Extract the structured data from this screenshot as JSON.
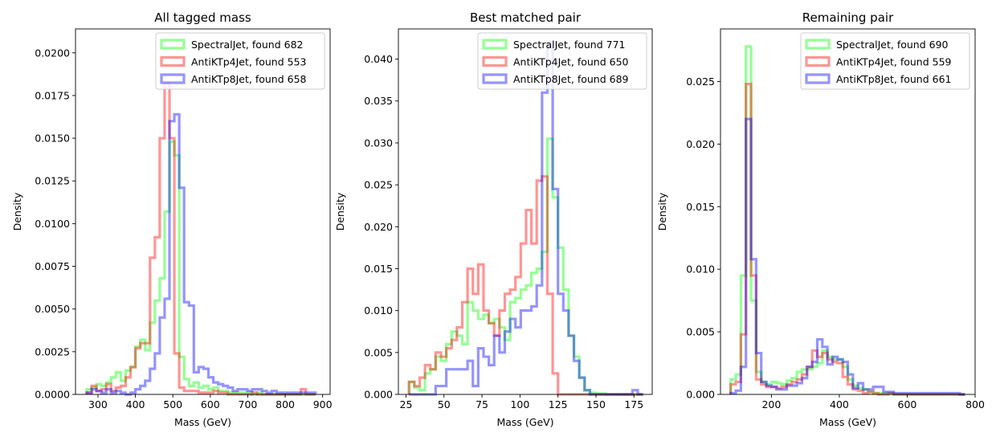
{
  "colors": {
    "SpectralJet": "#00ff00",
    "AntiKTp4Jet": "#ff0000",
    "AntiKTp8Jet": "#0000ff"
  },
  "chart_data": [
    {
      "type": "histogram",
      "title": "All tagged mass",
      "xlabel": "Mass (GeV)",
      "ylabel": "Density",
      "xlim": [
        240,
        920
      ],
      "ylim": [
        0,
        0.0214
      ],
      "xticks": [
        300,
        400,
        500,
        600,
        700,
        800,
        900
      ],
      "yticks": [
        0.0,
        0.0025,
        0.005,
        0.0075,
        0.01,
        0.0125,
        0.015,
        0.0175,
        0.02
      ],
      "ytick_labels": [
        "0.0000",
        "0.0025",
        "0.0050",
        "0.0075",
        "0.0100",
        "0.0125",
        "0.0150",
        "0.0175",
        "0.0200"
      ],
      "legend_position": "top-right",
      "series": [
        {
          "name": "SpectralJet, found 682",
          "color": "#00ff00",
          "edges": [
            270,
            283,
            296,
            309,
            322,
            335,
            348,
            361,
            374,
            387,
            400,
            413,
            426,
            439,
            452,
            465,
            478,
            491,
            504,
            517,
            530,
            543,
            556,
            569,
            582,
            595,
            608,
            621,
            634,
            647,
            660,
            673,
            686,
            699,
            712,
            725,
            738,
            751,
            764,
            777,
            790,
            803,
            816,
            829,
            842,
            855,
            868,
            881
          ],
          "values": [
            0.0003,
            0.0004,
            0.0006,
            0.0005,
            0.0007,
            0.001,
            0.0013,
            0.0008,
            0.0014,
            0.0016,
            0.0028,
            0.0032,
            0.0026,
            0.0042,
            0.0055,
            0.0068,
            0.0107,
            0.0148,
            0.014,
            0.0022,
            0.0009,
            0.0005,
            0.0007,
            0.0004,
            0.0005,
            0.0003,
            0.0004,
            0.0002,
            0.0002,
            0.0001,
            0.0001,
            0.0001,
            0.0001,
            0.0001,
            0.0,
            0.0001,
            0.0,
            0.0,
            0.0,
            0.0,
            0.0,
            0.0,
            0.0,
            0.0,
            0.0,
            0.0,
            0.0
          ]
        },
        {
          "name": "AntiKTp4Jet, found 553",
          "color": "#ff0000",
          "edges": [
            270,
            283,
            296,
            309,
            322,
            335,
            348,
            361,
            374,
            387,
            400,
            413,
            426,
            439,
            452,
            465,
            478,
            491,
            504,
            517,
            530,
            543,
            556,
            569,
            582,
            595,
            608,
            621,
            634,
            647,
            660,
            673,
            686,
            699,
            712,
            725,
            738,
            751,
            764,
            777,
            790,
            803,
            816,
            829,
            842,
            855,
            868,
            881
          ],
          "values": [
            0.0001,
            0.0005,
            0.0002,
            0.0003,
            0.0006,
            0.0002,
            0.0004,
            0.0005,
            0.001,
            0.0016,
            0.0027,
            0.003,
            0.003,
            0.008,
            0.0092,
            0.015,
            0.0182,
            0.015,
            0.0024,
            0.0004,
            0.0002,
            0.0002,
            0.0002,
            0.0001,
            0.0001,
            0.0001,
            0.0002,
            0.0001,
            0.0001,
            0.0,
            0.0,
            0.0,
            0.0,
            0.0,
            0.0001,
            0.0,
            0.0,
            0.0,
            0.0,
            0.0,
            0.0,
            0.0,
            0.0,
            0.0,
            0.0003,
            0.0,
            0.0
          ]
        },
        {
          "name": "AntiKTp8Jet, found 658",
          "color": "#0000ff",
          "edges": [
            270,
            283,
            296,
            309,
            322,
            335,
            348,
            361,
            374,
            387,
            400,
            413,
            426,
            439,
            452,
            465,
            478,
            491,
            504,
            517,
            530,
            543,
            556,
            569,
            582,
            595,
            608,
            621,
            634,
            647,
            660,
            673,
            686,
            699,
            712,
            725,
            738,
            751,
            764,
            777,
            790,
            803,
            816,
            829,
            842,
            855,
            868,
            881
          ],
          "values": [
            0.0001,
            0.0003,
            0.0002,
            0.0001,
            0.0003,
            0.0001,
            0.0002,
            0.0001,
            0.0,
            0.0001,
            0.0003,
            0.0005,
            0.0008,
            0.0015,
            0.0024,
            0.0045,
            0.0056,
            0.016,
            0.0164,
            0.0121,
            0.0054,
            0.0052,
            0.0013,
            0.0016,
            0.0015,
            0.001,
            0.0007,
            0.0006,
            0.0005,
            0.0004,
            0.0002,
            0.0003,
            0.0003,
            0.0002,
            0.0003,
            0.0003,
            0.0002,
            0.0001,
            0.0002,
            0.0001,
            0.0001,
            0.0001,
            0.0001,
            0.0001,
            0.0001,
            0.0001,
            0.0001
          ]
        }
      ]
    },
    {
      "type": "histogram",
      "title": "Best matched pair",
      "xlabel": "Mass (GeV)",
      "ylabel": "Density",
      "xlim": [
        20,
        187
      ],
      "ylim": [
        0,
        0.0436
      ],
      "xticks": [
        25,
        50,
        75,
        100,
        125,
        150,
        175
      ],
      "yticks": [
        0.0,
        0.005,
        0.01,
        0.015,
        0.02,
        0.025,
        0.03,
        0.035,
        0.04
      ],
      "ytick_labels": [
        "0.000",
        "0.005",
        "0.010",
        "0.015",
        "0.020",
        "0.025",
        "0.030",
        "0.035",
        "0.040"
      ],
      "legend_position": "top-right",
      "series": [
        {
          "name": "SpectralJet, found 771",
          "color": "#00ff00",
          "edges": [
            27,
            30.5,
            34,
            37.5,
            41,
            44.5,
            48,
            51.5,
            55,
            58.5,
            62,
            65.5,
            69,
            72.5,
            76,
            79.5,
            83,
            86.5,
            90,
            93.5,
            97,
            100.5,
            104,
            107.5,
            111,
            114.5,
            118,
            121.5,
            125,
            128.5,
            132,
            135.5,
            139,
            142.5,
            146,
            149.5,
            153,
            156.5,
            160,
            163.5,
            167,
            170.5,
            174,
            177.5,
            181
          ],
          "values": [
            0.0015,
            0.0008,
            0.0005,
            0.0025,
            0.003,
            0.0045,
            0.004,
            0.006,
            0.0075,
            0.007,
            0.006,
            0.011,
            0.01,
            0.009,
            0.0095,
            0.0085,
            0.009,
            0.008,
            0.0065,
            0.011,
            0.0115,
            0.0125,
            0.013,
            0.0145,
            0.015,
            0.017,
            0.0305,
            0.0235,
            0.0175,
            0.0125,
            0.007,
            0.0045,
            0.002,
            0.0005,
            0.0002,
            0.0001,
            0.0001,
            0.0,
            0.0,
            0.0,
            0.0,
            0.0,
            0.0,
            0.0
          ]
        },
        {
          "name": "AntiKTp4Jet, found 650",
          "color": "#ff0000",
          "edges": [
            27,
            30.5,
            34,
            37.5,
            41,
            44.5,
            48,
            51.5,
            55,
            58.5,
            62,
            65.5,
            69,
            72.5,
            76,
            79.5,
            83,
            86.5,
            90,
            93.5,
            97,
            100.5,
            104,
            107.5,
            111,
            114.5,
            118,
            121.5,
            125,
            128.5,
            132,
            135.5,
            139,
            142.5,
            146,
            149.5,
            153,
            156.5,
            160,
            163.5,
            167,
            170.5,
            174,
            177.5,
            181
          ],
          "values": [
            0.0015,
            0.001,
            0.002,
            0.0035,
            0.003,
            0.005,
            0.0045,
            0.0055,
            0.0065,
            0.008,
            0.011,
            0.015,
            0.012,
            0.0155,
            0.01,
            0.0085,
            0.007,
            0.01,
            0.012,
            0.0125,
            0.014,
            0.018,
            0.022,
            0.018,
            0.0255,
            0.026,
            0.012,
            0.0025,
            0.0,
            0.0,
            0.0,
            0.0,
            0.0,
            0.0,
            0.0,
            0.0,
            0.0,
            0.0,
            0.0,
            0.0,
            0.0,
            0.0,
            0.0,
            0.0
          ]
        },
        {
          "name": "AntiKTp8Jet, found 689",
          "color": "#0000ff",
          "edges": [
            27,
            30.5,
            34,
            37.5,
            41,
            44.5,
            48,
            51.5,
            55,
            58.5,
            62,
            65.5,
            69,
            72.5,
            76,
            79.5,
            83,
            86.5,
            90,
            93.5,
            97,
            100.5,
            104,
            107.5,
            111,
            114.5,
            118,
            121.5,
            125,
            128.5,
            132,
            135.5,
            139,
            142.5,
            146,
            149.5,
            153,
            156.5,
            160,
            163.5,
            167,
            170.5,
            174,
            177.5,
            181
          ],
          "values": [
            0.0,
            0.0,
            0.0,
            0.0,
            0.0,
            0.001,
            0.001,
            0.003,
            0.003,
            0.003,
            0.003,
            0.004,
            0.001,
            0.0055,
            0.0045,
            0.0035,
            0.007,
            0.005,
            0.0075,
            0.009,
            0.008,
            0.01,
            0.01,
            0.0105,
            0.013,
            0.036,
            0.042,
            0.0245,
            0.012,
            0.01,
            0.007,
            0.004,
            0.002,
            0.0005,
            0.0,
            0.0,
            0.0,
            0.0,
            0.0,
            0.0,
            0.0,
            0.0,
            0.0005,
            0.0
          ]
        }
      ]
    },
    {
      "type": "histogram",
      "title": "Remaining pair",
      "xlabel": "Mass (GeV)",
      "ylabel": "Density",
      "xlim": [
        50,
        800
      ],
      "ylim": [
        0,
        0.0292
      ],
      "xticks": [
        200,
        400,
        600,
        800
      ],
      "yticks": [
        0.0,
        0.005,
        0.01,
        0.015,
        0.02,
        0.025
      ],
      "ytick_labels": [
        "0.000",
        "0.005",
        "0.010",
        "0.015",
        "0.020",
        "0.025"
      ],
      "legend_position": "top-right",
      "series": [
        {
          "name": "SpectralJet, found 690",
          "color": "#00ff00",
          "edges": [
            80,
            95,
            110,
            125,
            140,
            155,
            170,
            185,
            200,
            215,
            230,
            245,
            260,
            275,
            290,
            305,
            320,
            335,
            350,
            365,
            380,
            395,
            410,
            425,
            440,
            455,
            470,
            485,
            500,
            515,
            530,
            545,
            560,
            575,
            590,
            605,
            620,
            635,
            650,
            665,
            680,
            695,
            710,
            725,
            740,
            755,
            770
          ],
          "values": [
            0.0012,
            0.0016,
            0.0095,
            0.0278,
            0.0075,
            0.0018,
            0.001,
            0.0008,
            0.001,
            0.0009,
            0.0008,
            0.0011,
            0.0013,
            0.0018,
            0.002,
            0.002,
            0.0022,
            0.0025,
            0.0035,
            0.003,
            0.0028,
            0.0028,
            0.0022,
            0.0012,
            0.0007,
            0.0005,
            0.0004,
            0.0002,
            0.0001,
            0.0001,
            0.0001,
            0.0001,
            0.0,
            0.0,
            0.0,
            0.0,
            0.0,
            0.0,
            0.0,
            0.0,
            0.0,
            0.0,
            0.0,
            0.0,
            0.0,
            0.0
          ]
        },
        {
          "name": "AntiKTp4Jet, found 559",
          "color": "#ff0000",
          "edges": [
            80,
            95,
            110,
            125,
            140,
            155,
            170,
            185,
            200,
            215,
            230,
            245,
            260,
            275,
            290,
            305,
            320,
            335,
            350,
            365,
            380,
            395,
            410,
            425,
            440,
            455,
            470,
            485,
            500,
            515,
            530,
            545,
            560,
            575,
            590,
            605,
            620,
            635,
            650,
            665,
            680,
            695,
            710,
            725,
            740,
            755,
            770
          ],
          "values": [
            0.0008,
            0.001,
            0.0048,
            0.0248,
            0.0095,
            0.0012,
            0.0008,
            0.0006,
            0.0006,
            0.0005,
            0.0006,
            0.0008,
            0.001,
            0.0012,
            0.0016,
            0.0022,
            0.0035,
            0.003,
            0.0033,
            0.0028,
            0.0026,
            0.0025,
            0.0014,
            0.0008,
            0.0004,
            0.0003,
            0.0001,
            0.0002,
            0.0001,
            0.0,
            0.0,
            0.0001,
            0.0,
            0.0,
            0.0,
            0.0,
            0.0,
            0.0,
            0.0,
            0.0,
            0.0,
            0.0,
            0.0,
            0.0,
            0.0,
            0.0
          ]
        },
        {
          "name": "AntiKTp8Jet, found 661",
          "color": "#0000ff",
          "edges": [
            80,
            95,
            110,
            125,
            140,
            155,
            170,
            185,
            200,
            215,
            230,
            245,
            260,
            275,
            290,
            305,
            320,
            335,
            350,
            365,
            380,
            395,
            410,
            425,
            440,
            455,
            470,
            485,
            500,
            515,
            530,
            545,
            560,
            575,
            590,
            605,
            620,
            635,
            650,
            665,
            680,
            695,
            710,
            725,
            740,
            755,
            770
          ],
          "values": [
            0.0001,
            0.0003,
            0.0022,
            0.022,
            0.0108,
            0.0033,
            0.001,
            0.0007,
            0.0006,
            0.0004,
            0.0004,
            0.0007,
            0.0007,
            0.0009,
            0.0013,
            0.0022,
            0.0026,
            0.0044,
            0.0038,
            0.0024,
            0.003,
            0.0028,
            0.0026,
            0.0016,
            0.0005,
            0.0009,
            0.0004,
            0.0004,
            0.0006,
            0.0006,
            0.0002,
            0.0002,
            0.0001,
            0.0001,
            0.0001,
            0.0001,
            0.0001,
            0.0001,
            0.0001,
            0.0001,
            0.0001,
            0.0001,
            0.0001,
            0.0001,
            0.0001,
            0.0
          ]
        }
      ]
    }
  ]
}
